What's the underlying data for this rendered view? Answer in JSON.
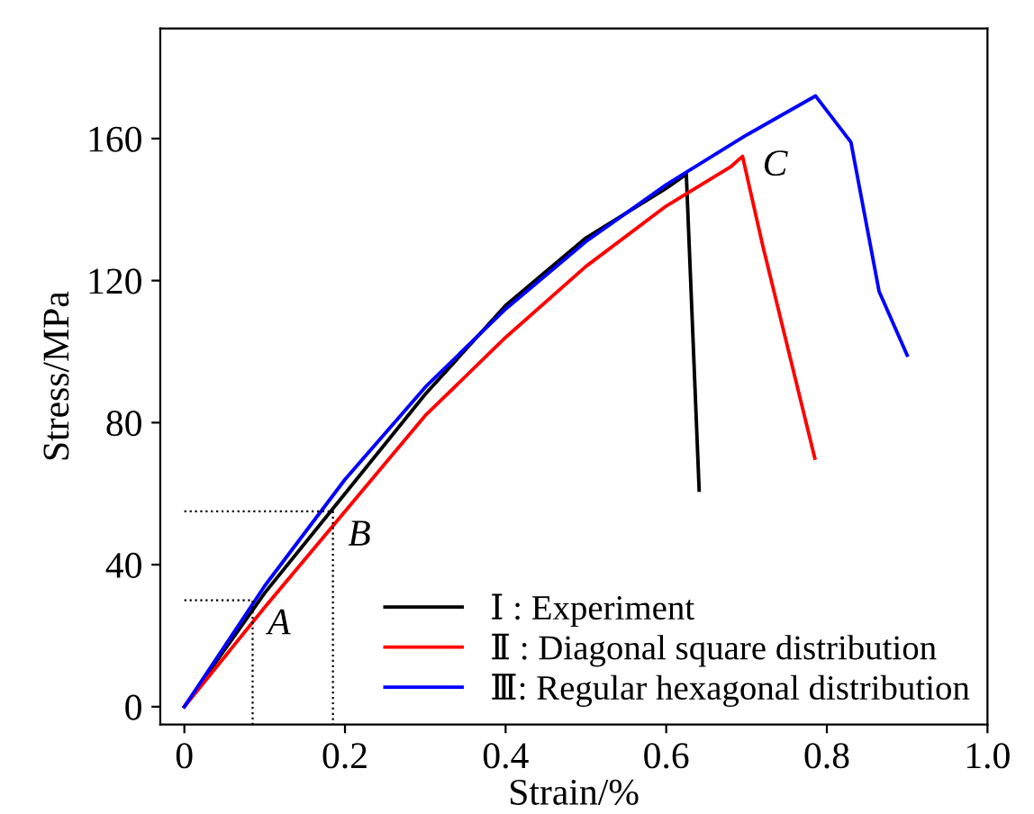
{
  "chart_data": {
    "type": "line",
    "xlabel": "Strain/%",
    "ylabel": "Stress/MPa",
    "xlim": [
      -0.03,
      1.0
    ],
    "ylim": [
      -5,
      191
    ],
    "xticks": [
      0,
      0.2,
      0.4,
      0.6,
      0.8,
      {
        "value": 1.0,
        "label": "1.0"
      }
    ],
    "yticks": [
      0,
      40,
      80,
      120,
      160
    ],
    "grid": false,
    "legend": "bottom right",
    "marker": "none",
    "series": [
      {
        "name": "Ⅰ : Experiment",
        "color": "#000000",
        "x": [
          0,
          0.1,
          0.2,
          0.3,
          0.4,
          0.5,
          0.6,
          0.625,
          0.641
        ],
        "values": [
          0,
          32,
          60,
          88,
          113,
          132,
          146,
          150,
          61
        ]
      },
      {
        "name": "Ⅱ : Diagonal square distribution",
        "color": "#ff0000",
        "x": [
          0,
          0.1,
          0.2,
          0.3,
          0.4,
          0.5,
          0.6,
          0.68,
          0.695,
          0.72,
          0.785
        ],
        "values": [
          0,
          28,
          55,
          82,
          104,
          124,
          141,
          152,
          155,
          130,
          70
        ]
      },
      {
        "name": "Ⅲ: Regular hexagonal distribution",
        "color": "#0000ff",
        "x": [
          0,
          0.1,
          0.2,
          0.3,
          0.4,
          0.5,
          0.6,
          0.7,
          0.786,
          0.83,
          0.865,
          0.9
        ],
        "values": [
          0,
          34,
          64,
          90,
          112,
          131,
          147,
          161,
          172,
          159,
          117,
          99
        ]
      },
      {
        "color": "#000000",
        "line_style": "dotted",
        "x": [
          0,
          0.085,
          0.085
        ],
        "values": [
          30,
          30,
          -5
        ]
      },
      {
        "color": "#000000",
        "line_style": "dotted",
        "x": [
          0,
          0.185,
          0.185
        ],
        "values": [
          55,
          55,
          -5
        ]
      }
    ],
    "annotations": [
      {
        "text": "A",
        "x": 0.085,
        "y": 30
      },
      {
        "text": "B",
        "x": 0.185,
        "y": 55
      },
      {
        "text": "C",
        "x": 0.695,
        "y": 155
      }
    ]
  }
}
